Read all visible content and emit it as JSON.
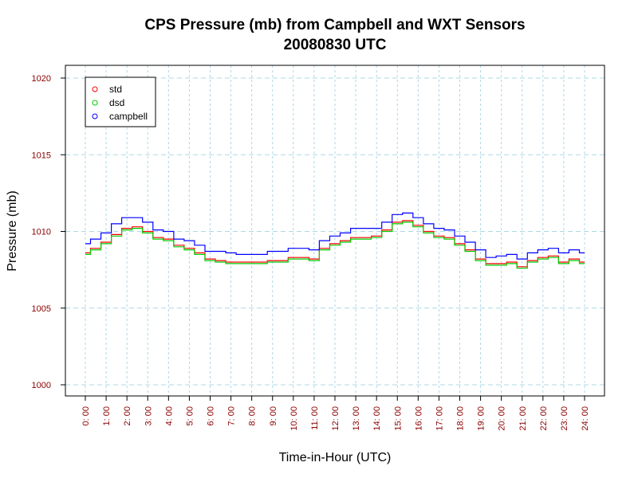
{
  "chart_data": {
    "type": "line",
    "title": "CPS Pressure (mb) from Campbell and WXT Sensors",
    "subtitle": "20080830  UTC",
    "xlabel": "Time-in-Hour (UTC)",
    "ylabel": "Pressure (mb)",
    "xlim": [
      0,
      24
    ],
    "ylim": [
      1000,
      1020
    ],
    "grid": true,
    "legend_position": "top-left",
    "x_tick_labels": [
      "0: 00",
      "1: 00",
      "2: 00",
      "3: 00",
      "4: 00",
      "5: 00",
      "6: 00",
      "7: 00",
      "8: 00",
      "9: 00",
      "10: 00",
      "11: 00",
      "12: 00",
      "13: 00",
      "14: 00",
      "15: 00",
      "16: 00",
      "17: 00",
      "18: 00",
      "19: 00",
      "20: 00",
      "21: 00",
      "22: 00",
      "23: 00",
      "24: 00"
    ],
    "y_ticks": [
      1000,
      1005,
      1010,
      1015,
      1020
    ],
    "y_tick_labels": [
      "1000",
      "1005",
      "1010",
      "1015",
      "1020"
    ],
    "x": [
      0,
      0.5,
      1,
      1.5,
      2,
      2.5,
      3,
      3.5,
      4,
      4.5,
      5,
      5.5,
      6,
      6.5,
      7,
      7.5,
      8,
      8.5,
      9,
      9.5,
      10,
      10.5,
      11,
      11.5,
      12,
      12.5,
      13,
      13.5,
      14,
      14.5,
      15,
      15.5,
      16,
      16.5,
      17,
      17.5,
      18,
      18.5,
      19,
      19.5,
      20,
      20.5,
      21,
      21.5,
      22,
      22.5,
      23,
      23.5,
      24
    ],
    "series": [
      {
        "name": "std",
        "color": "#ff0000",
        "values": [
          1008.6,
          1008.9,
          1009.3,
          1009.8,
          1010.2,
          1010.3,
          1010.0,
          1009.6,
          1009.5,
          1009.1,
          1008.9,
          1008.6,
          1008.2,
          1008.1,
          1008.0,
          1008.0,
          1008.0,
          1008.0,
          1008.1,
          1008.1,
          1008.3,
          1008.3,
          1008.2,
          1008.9,
          1009.2,
          1009.4,
          1009.6,
          1009.6,
          1009.7,
          1010.1,
          1010.6,
          1010.7,
          1010.4,
          1010.0,
          1009.7,
          1009.6,
          1009.2,
          1008.8,
          1008.2,
          1007.9,
          1007.9,
          1008.0,
          1007.7,
          1008.1,
          1008.3,
          1008.4,
          1008.0,
          1008.2,
          1008.0
        ]
      },
      {
        "name": "dsd",
        "color": "#00cc00",
        "values": [
          1008.5,
          1008.8,
          1009.2,
          1009.7,
          1010.1,
          1010.2,
          1009.9,
          1009.5,
          1009.4,
          1009.0,
          1008.8,
          1008.5,
          1008.1,
          1008.0,
          1007.9,
          1007.9,
          1007.9,
          1007.9,
          1008.0,
          1008.0,
          1008.2,
          1008.2,
          1008.1,
          1008.8,
          1009.1,
          1009.3,
          1009.5,
          1009.5,
          1009.6,
          1010.0,
          1010.5,
          1010.6,
          1010.3,
          1009.9,
          1009.6,
          1009.5,
          1009.1,
          1008.7,
          1008.1,
          1007.8,
          1007.8,
          1007.9,
          1007.6,
          1008.0,
          1008.2,
          1008.3,
          1007.9,
          1008.1,
          1007.9
        ]
      },
      {
        "name": "campbell",
        "color": "#0000ff",
        "values": [
          1009.2,
          1009.5,
          1009.9,
          1010.5,
          1010.9,
          1010.9,
          1010.6,
          1010.1,
          1010.0,
          1009.5,
          1009.4,
          1009.1,
          1008.7,
          1008.7,
          1008.6,
          1008.5,
          1008.5,
          1008.5,
          1008.7,
          1008.7,
          1008.9,
          1008.9,
          1008.8,
          1009.4,
          1009.7,
          1009.9,
          1010.2,
          1010.2,
          1010.2,
          1010.6,
          1011.1,
          1011.2,
          1010.9,
          1010.5,
          1010.2,
          1010.1,
          1009.7,
          1009.3,
          1008.8,
          1008.3,
          1008.4,
          1008.5,
          1008.2,
          1008.6,
          1008.8,
          1008.9,
          1008.6,
          1008.8,
          1008.6
        ]
      }
    ]
  }
}
